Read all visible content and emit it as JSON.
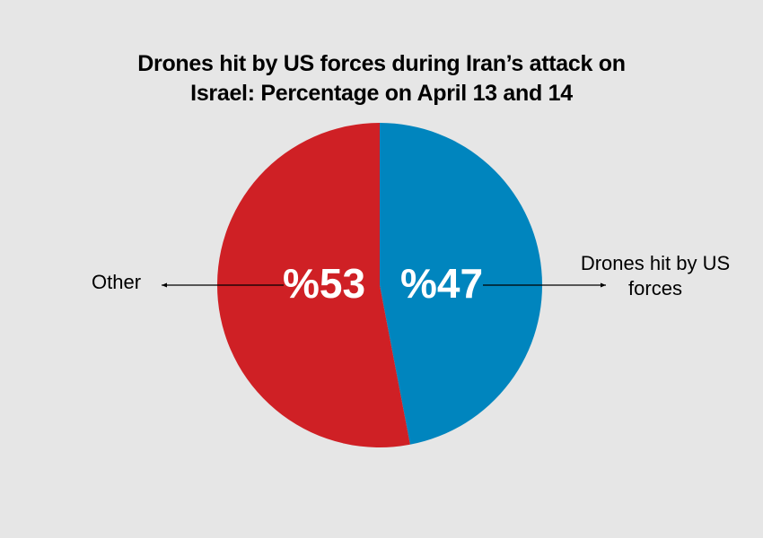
{
  "chart_data": {
    "type": "pie",
    "title_line1": "Drones hit by US forces during Iran’s attack on",
    "title_line2": "Israel: Percentage on April 13 and 14",
    "slices": [
      {
        "label": "Drones hit by US forces",
        "label_line1": "Drones hit by US",
        "label_line2": "forces",
        "value": 47,
        "value_label": "%47",
        "color": "#0085be"
      },
      {
        "label": "Other",
        "value": 53,
        "value_label": "%53",
        "color": "#cf2025"
      }
    ],
    "background": "#e6e6e6"
  }
}
